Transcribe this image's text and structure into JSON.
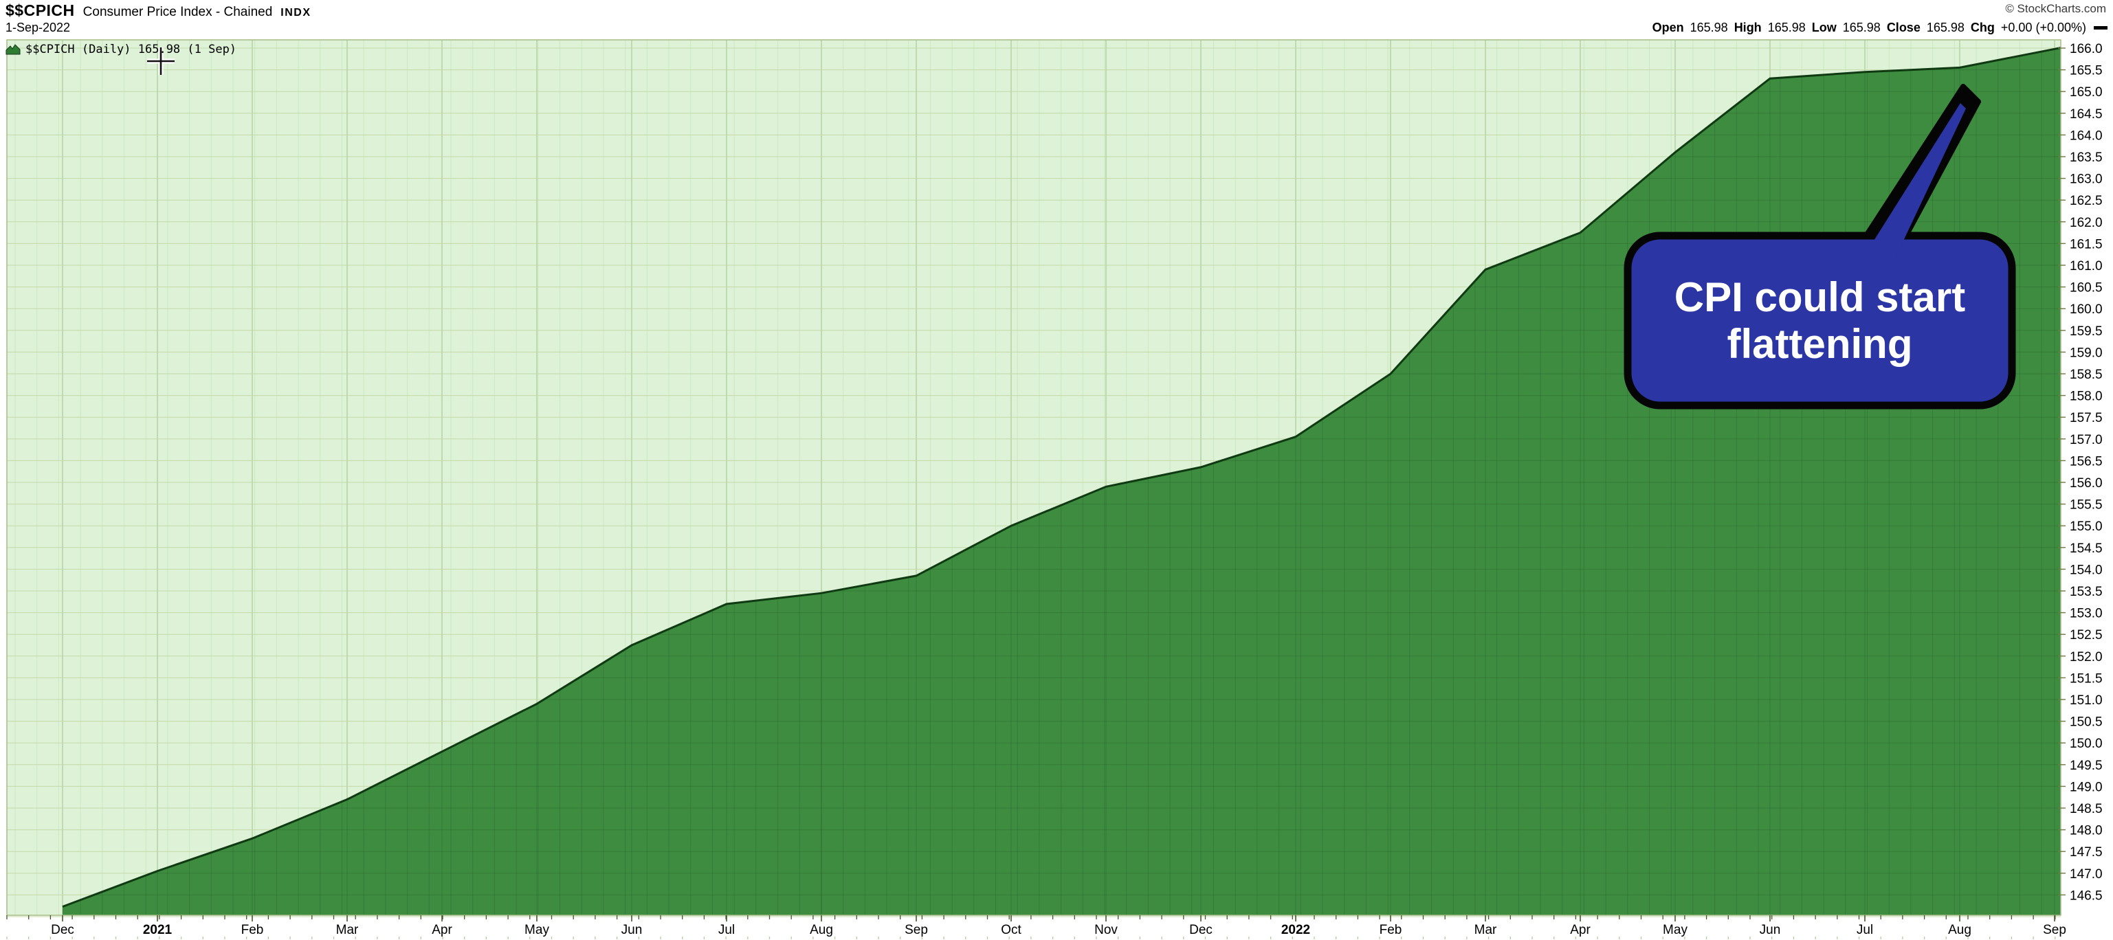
{
  "header": {
    "symbol": "$$CPICH",
    "title": "Consumer Price Index - Chained",
    "exchange": "INDX",
    "date": "1-Sep-2022",
    "copyright": "© StockCharts.com",
    "ohlc": {
      "open_label": "Open",
      "open": "165.98",
      "high_label": "High",
      "high": "165.98",
      "low_label": "Low",
      "low": "165.98",
      "close_label": "Close",
      "close": "165.98",
      "chg_label": "Chg",
      "chg": "+0.00 (+0.00%)",
      "collapse_dash_icon": "—"
    }
  },
  "legend": {
    "area_icon": "area-series-icon",
    "text": "$$CPICH (Daily) 165.98 (1 Sep)"
  },
  "annotation": {
    "line1": "CPI could start",
    "line2": "flattening",
    "fill": "#2b35a3",
    "border": "#050505",
    "text_color": "#ffffff"
  },
  "chart_data": {
    "type": "area",
    "title": "$$CPICH Consumer Price Index - Chained INDX",
    "subtitle": "1-Sep-2022",
    "series": [
      {
        "name": "$$CPICH Daily",
        "x": [
          "2020-12",
          "2021-01",
          "2021-02",
          "2021-03",
          "2021-04",
          "2021-05",
          "2021-06",
          "2021-07",
          "2021-08",
          "2021-09",
          "2021-10",
          "2021-11",
          "2021-12",
          "2022-01",
          "2022-02",
          "2022-03",
          "2022-04",
          "2022-05",
          "2022-06",
          "2022-07",
          "2022-08",
          "2022-09"
        ],
        "values": [
          146.23,
          147.05,
          147.8,
          148.7,
          149.8,
          150.9,
          152.25,
          153.2,
          153.45,
          153.85,
          155.0,
          155.9,
          156.35,
          157.05,
          158.5,
          160.9,
          161.75,
          163.6,
          165.3,
          165.45,
          165.55,
          165.98
        ]
      }
    ],
    "last_value": 165.98,
    "last_date": "1 Sep",
    "x_tick_labels": [
      {
        "label": "Dec",
        "bold": false
      },
      {
        "label": "2021",
        "bold": true
      },
      {
        "label": "Feb",
        "bold": false
      },
      {
        "label": "Mar",
        "bold": false
      },
      {
        "label": "Apr",
        "bold": false
      },
      {
        "label": "May",
        "bold": false
      },
      {
        "label": "Jun",
        "bold": false
      },
      {
        "label": "Jul",
        "bold": false
      },
      {
        "label": "Aug",
        "bold": false
      },
      {
        "label": "Sep",
        "bold": false
      },
      {
        "label": "Oct",
        "bold": false
      },
      {
        "label": "Nov",
        "bold": false
      },
      {
        "label": "Dec",
        "bold": false
      },
      {
        "label": "2022",
        "bold": true
      },
      {
        "label": "Feb",
        "bold": false
      },
      {
        "label": "Mar",
        "bold": false
      },
      {
        "label": "Apr",
        "bold": false
      },
      {
        "label": "May",
        "bold": false
      },
      {
        "label": "Jun",
        "bold": false
      },
      {
        "label": "Jul",
        "bold": false
      },
      {
        "label": "Aug",
        "bold": false
      },
      {
        "label": "Sep",
        "bold": false
      }
    ],
    "y_ticks": [
      166.0,
      165.5,
      165.0,
      164.5,
      164.0,
      163.5,
      163.0,
      162.5,
      162.0,
      161.5,
      161.0,
      160.5,
      160.0,
      159.5,
      159.0,
      158.5,
      158.0,
      157.5,
      157.0,
      156.5,
      156.0,
      155.5,
      155.0,
      154.5,
      154.0,
      153.5,
      153.0,
      152.5,
      152.0,
      151.5,
      151.0,
      150.5,
      150.0,
      149.5,
      149.0,
      148.5,
      148.0,
      147.5,
      147.0,
      146.5
    ],
    "ylim": [
      146.5,
      166.0
    ],
    "y_tick_step": 0.5,
    "grid": true,
    "legend_position": "top-left",
    "colors": {
      "plot_bg": "#ddf2d7",
      "area_fill": "#3d8c40",
      "area_line": "#103a12",
      "grid_h": "#c4d9a8",
      "grid_v_minor": "#cce8c2",
      "grid_v_month": "#b2cf9e",
      "axis_border": "#a8bc88",
      "tick_major": "#43552b",
      "tick_faint": "#b9c9a4",
      "label_color": "#000000"
    }
  }
}
